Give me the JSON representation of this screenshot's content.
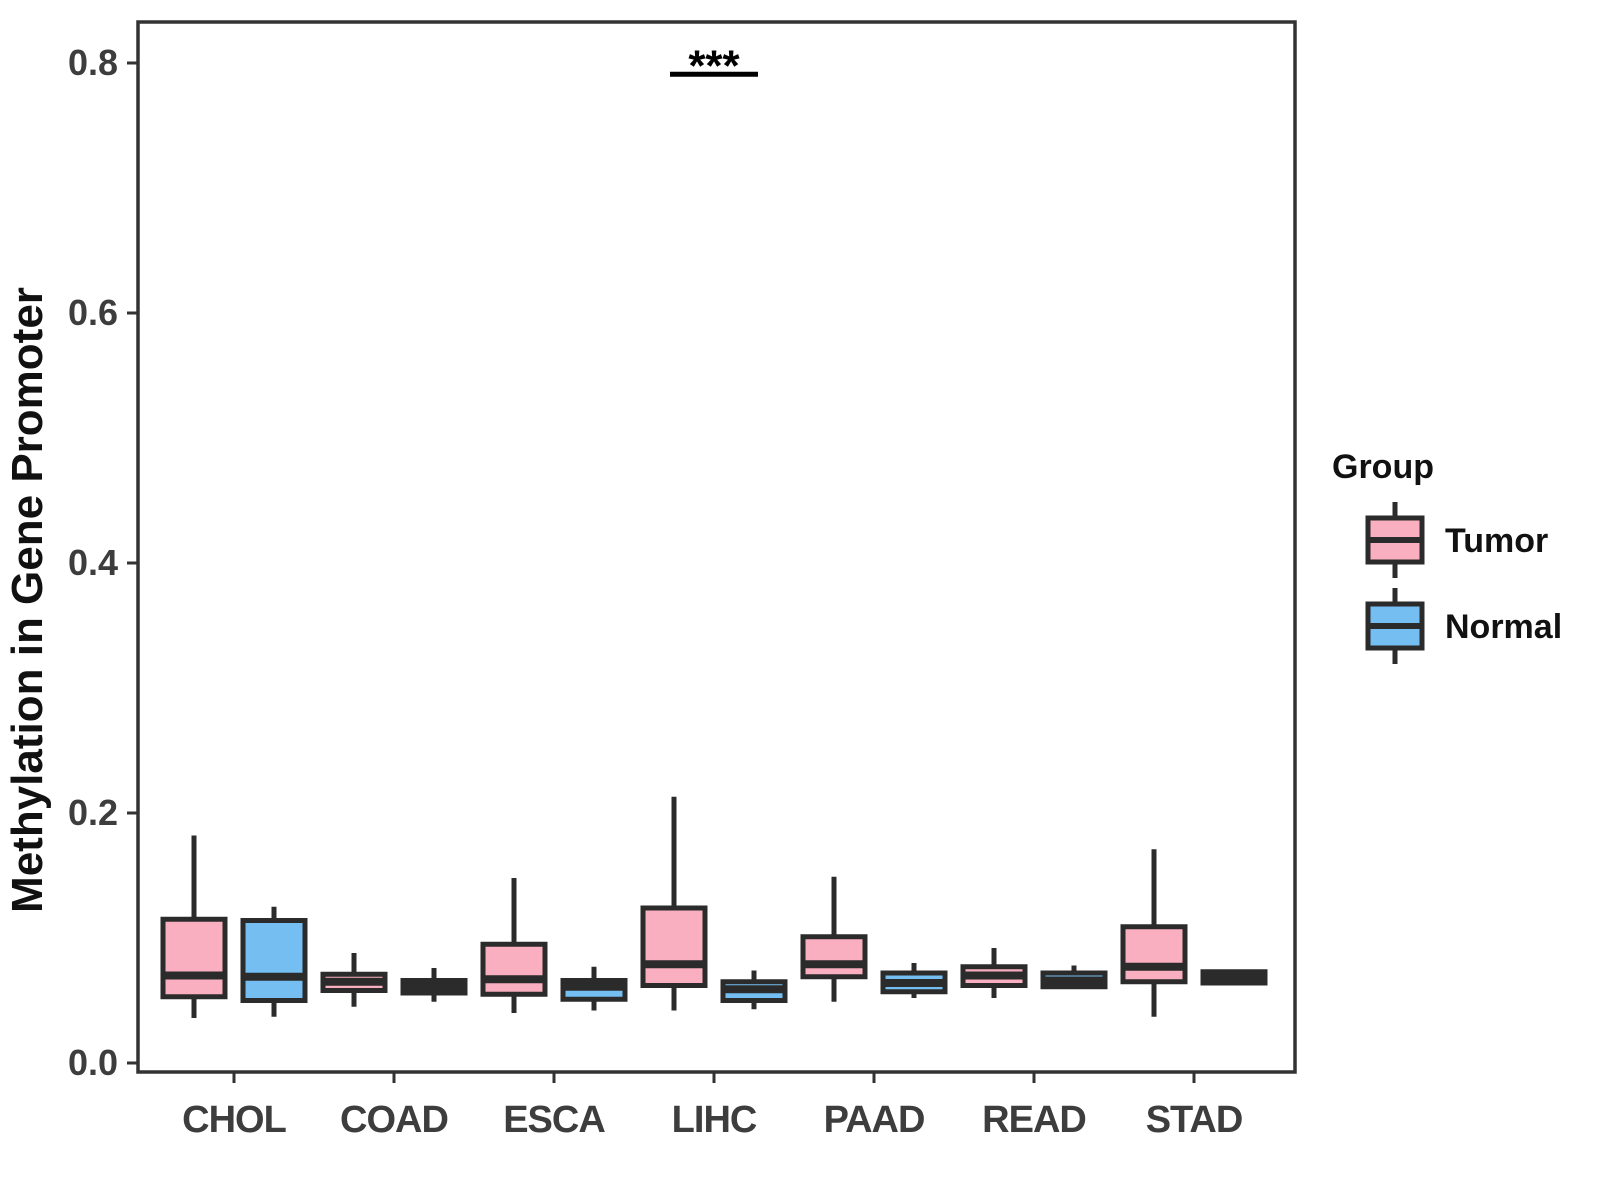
{
  "figure": {
    "legend": {
      "title": "Group"
    }
  },
  "chart_data": {
    "type": "boxplot",
    "title": "",
    "xlabel": "",
    "ylabel": "Methylation in Gene Promoter",
    "ylim": [
      0,
      0.84
    ],
    "yticks": [
      0.0,
      0.2,
      0.4,
      0.6,
      0.8
    ],
    "grid": false,
    "legend_position": "right",
    "categories": [
      "CHOL",
      "COAD",
      "ESCA",
      "LIHC",
      "PAAD",
      "READ",
      "STAD"
    ],
    "series": [
      {
        "name": "Tumor",
        "color": "#FAAFC1",
        "boxes": [
          {
            "whisker_low": 0.036,
            "q1": 0.053,
            "median": 0.07,
            "q3": 0.115,
            "whisker_high": 0.182
          },
          {
            "whisker_low": 0.045,
            "q1": 0.058,
            "median": 0.065,
            "q3": 0.071,
            "whisker_high": 0.088
          },
          {
            "whisker_low": 0.04,
            "q1": 0.055,
            "median": 0.067,
            "q3": 0.095,
            "whisker_high": 0.148
          },
          {
            "whisker_low": 0.042,
            "q1": 0.062,
            "median": 0.079,
            "q3": 0.124,
            "whisker_high": 0.213
          },
          {
            "whisker_low": 0.049,
            "q1": 0.069,
            "median": 0.079,
            "q3": 0.101,
            "whisker_high": 0.149
          },
          {
            "whisker_low": 0.052,
            "q1": 0.062,
            "median": 0.07,
            "q3": 0.077,
            "whisker_high": 0.092
          },
          {
            "whisker_low": 0.037,
            "q1": 0.065,
            "median": 0.077,
            "q3": 0.109,
            "whisker_high": 0.171
          }
        ]
      },
      {
        "name": "Normal",
        "color": "#74BEF2",
        "boxes": [
          {
            "whisker_low": 0.037,
            "q1": 0.05,
            "median": 0.069,
            "q3": 0.114,
            "whisker_high": 0.125
          },
          {
            "whisker_low": 0.049,
            "q1": 0.056,
            "median": 0.061,
            "q3": 0.066,
            "whisker_high": 0.076
          },
          {
            "whisker_low": 0.042,
            "q1": 0.051,
            "median": 0.061,
            "q3": 0.066,
            "whisker_high": 0.077
          },
          {
            "whisker_low": 0.043,
            "q1": 0.05,
            "median": 0.059,
            "q3": 0.065,
            "whisker_high": 0.074
          },
          {
            "whisker_low": 0.052,
            "q1": 0.057,
            "median": 0.064,
            "q3": 0.072,
            "whisker_high": 0.08
          },
          {
            "whisker_low": 0.06,
            "q1": 0.061,
            "median": 0.066,
            "q3": 0.072,
            "whisker_high": 0.078
          },
          {
            "whisker_low": 0.062,
            "q1": 0.064,
            "median": 0.068,
            "q3": 0.073,
            "whisker_high": 0.074
          }
        ]
      }
    ],
    "annotations": [
      {
        "text": "***",
        "category": "LIHC",
        "bar_y": 0.791
      }
    ]
  }
}
